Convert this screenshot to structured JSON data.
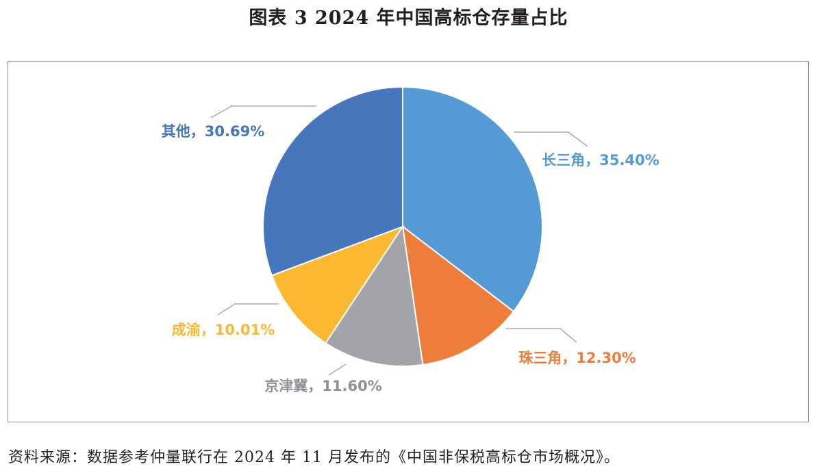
{
  "title": "图表 3  2024 年中国高标仓存量占比",
  "source": "资料来源：数据参考仲量联行在 2024 年 11 月发布的《中国非保税高标仓市场概况》。",
  "colors": {
    "长三角": "#549bd6",
    "珠三角": "#ee7d3b",
    "京津冀": "#a3a4a7",
    "成渝": "#fcb831",
    "其他": "#4677bd"
  },
  "chart_data": {
    "type": "pie",
    "title": "图表 3  2024 年中国高标仓存量占比",
    "slices": [
      {
        "name": "长三角",
        "value": 35.4,
        "label": "长三角，35.40%"
      },
      {
        "name": "珠三角",
        "value": 12.3,
        "label": "珠三角，12.30%"
      },
      {
        "name": "京津冀",
        "value": 11.6,
        "label": "京津冀，11.60%"
      },
      {
        "name": "成渝",
        "value": 10.01,
        "label": "成渝，10.01%"
      },
      {
        "name": "其他",
        "value": 30.69,
        "label": "其他，30.69%"
      }
    ],
    "start": "12 o'clock, clockwise",
    "legend": "none (labels beside slices)"
  }
}
